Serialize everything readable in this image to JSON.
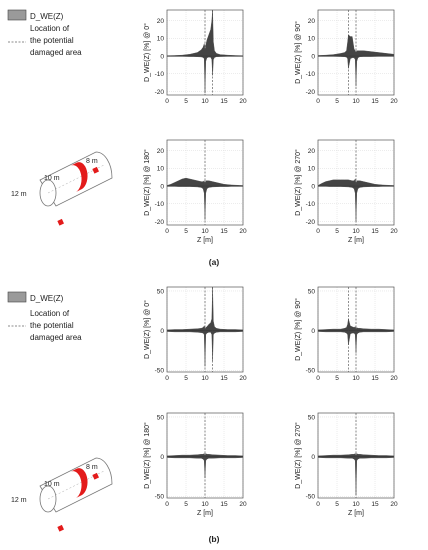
{
  "figure": {
    "caption_a": "(a)",
    "caption_b": "(b)"
  },
  "legend": {
    "series_label": "D_WE(Z)",
    "dashed_label_lines": [
      "Location of",
      "the potential",
      "damaged area"
    ]
  },
  "structure_labels": {
    "dim1": "8 m",
    "dim2": "10 m",
    "dim3": "12 m"
  },
  "colors": {
    "bar_fill": "#444444",
    "damage_marker": "#e31b1b",
    "grid": "#d8d8d8",
    "dashed": "#444444"
  },
  "chart_data": [
    {
      "id": "a-0",
      "type": "area",
      "panel": "a",
      "ylabel": "D_WE(Z) [%] @ 0°",
      "xlabel": "",
      "xlim": [
        0,
        20
      ],
      "ylim": [
        -22,
        26
      ],
      "xticks": [
        0,
        5,
        10,
        15,
        20
      ],
      "yticks": [
        -20,
        -10,
        0,
        10,
        20
      ],
      "damage_lines": [
        10,
        12
      ],
      "x": [
        0,
        2,
        4,
        6,
        7,
        8,
        9,
        9.5,
        9.8,
        10,
        10.2,
        10.5,
        11,
        11.5,
        11.8,
        12,
        12.2,
        12.5,
        13,
        14,
        16,
        18,
        20
      ],
      "upper": [
        0.2,
        0.3,
        0.5,
        1.0,
        1.5,
        2.0,
        3.5,
        5,
        7,
        3,
        6,
        9,
        12,
        15,
        20,
        26,
        8,
        3,
        1.5,
        0.8,
        0.5,
        0.3,
        0.2
      ],
      "lower": [
        -0.2,
        -0.2,
        -0.2,
        -0.3,
        -0.3,
        -0.4,
        -0.5,
        -0.8,
        -1.5,
        -21,
        -3,
        -1,
        -0.6,
        -0.7,
        -2,
        -11,
        -2,
        -0.8,
        -0.4,
        -0.3,
        -0.2,
        -0.2,
        -0.2
      ]
    },
    {
      "id": "a-90",
      "type": "area",
      "panel": "a",
      "ylabel": "D_WE(Z) [%] @ 90°",
      "xlabel": "",
      "xlim": [
        0,
        20
      ],
      "ylim": [
        -22,
        26
      ],
      "xticks": [
        0,
        5,
        10,
        15,
        20
      ],
      "yticks": [
        -20,
        -10,
        0,
        10,
        20
      ],
      "damage_lines": [
        8,
        10
      ],
      "x": [
        0,
        2,
        4,
        6,
        7,
        7.5,
        7.8,
        8,
        8.5,
        9,
        9.5,
        9.8,
        10,
        10.2,
        10.5,
        11,
        12,
        14,
        16,
        18,
        20
      ],
      "upper": [
        0.3,
        0.5,
        0.8,
        1.5,
        2.0,
        3,
        8,
        12,
        11,
        11,
        4,
        3,
        2,
        3,
        3,
        3,
        3,
        2.5,
        2,
        1.5,
        1
      ],
      "lower": [
        -0.2,
        -0.2,
        -0.2,
        -0.3,
        -0.4,
        -0.6,
        -1.5,
        -7,
        -1.5,
        -1,
        -1,
        -2,
        -17,
        -3,
        -1,
        -0.4,
        -0.3,
        -0.3,
        -0.2,
        -0.2,
        -0.2
      ]
    },
    {
      "id": "a-180",
      "type": "area",
      "panel": "a",
      "ylabel": "D_WE(Z) [%] @ 180°",
      "xlabel": "Z [m]",
      "xlim": [
        0,
        20
      ],
      "ylim": [
        -22,
        26
      ],
      "xticks": [
        0,
        5,
        10,
        15,
        20
      ],
      "yticks": [
        -20,
        -10,
        0,
        10,
        20
      ],
      "damage_lines": [
        10
      ],
      "x": [
        0,
        1,
        2,
        3,
        4,
        5,
        6,
        7,
        8,
        9,
        9.5,
        9.8,
        10,
        10.2,
        10.5,
        11,
        12,
        13,
        14,
        15,
        16,
        17,
        18,
        19,
        20
      ],
      "upper": [
        0.3,
        1,
        2,
        3,
        4,
        4.5,
        4,
        3.5,
        3,
        2.5,
        2.5,
        3,
        1,
        3,
        3,
        3,
        2.5,
        2,
        1.5,
        1,
        0.8,
        0.6,
        0.5,
        0.4,
        0.3
      ],
      "lower": [
        -0.2,
        -0.2,
        -0.2,
        -0.3,
        -0.3,
        -0.3,
        -0.3,
        -0.4,
        -0.5,
        -0.8,
        -1.5,
        -4,
        -19,
        -4,
        -1.5,
        -0.8,
        -0.5,
        -0.4,
        -0.3,
        -0.3,
        -0.3,
        -0.2,
        -0.2,
        -0.2,
        -0.2
      ]
    },
    {
      "id": "a-270",
      "type": "area",
      "panel": "a",
      "ylabel": "D_WE(Z) [%] @ 270°",
      "xlabel": "Z [m]",
      "xlim": [
        0,
        20
      ],
      "ylim": [
        -22,
        26
      ],
      "xticks": [
        0,
        5,
        10,
        15,
        20
      ],
      "yticks": [
        -20,
        -10,
        0,
        10,
        20
      ],
      "damage_lines": [
        10
      ],
      "x": [
        0,
        1,
        2,
        3,
        4,
        5,
        6,
        7,
        8,
        9,
        9.5,
        9.8,
        10,
        10.2,
        10.5,
        11,
        12,
        13,
        14,
        15,
        16,
        17,
        18,
        19,
        20
      ],
      "upper": [
        0.3,
        1.5,
        2.5,
        3,
        3.5,
        3.5,
        3.5,
        3.5,
        3.5,
        3,
        3,
        4,
        1,
        3,
        3,
        3,
        2.5,
        2,
        1.5,
        1,
        0.8,
        0.6,
        0.5,
        0.4,
        0.3
      ],
      "lower": [
        -0.2,
        -0.2,
        -0.2,
        -0.3,
        -0.3,
        -0.3,
        -0.3,
        -0.4,
        -0.5,
        -0.8,
        -1.5,
        -4,
        -20,
        -4,
        -1.5,
        -0.8,
        -0.5,
        -0.4,
        -0.3,
        -0.3,
        -0.3,
        -0.2,
        -0.2,
        -0.2,
        -0.2
      ]
    },
    {
      "id": "b-0",
      "type": "area",
      "panel": "b",
      "ylabel": "D_WE(Z) [%] @ 0°",
      "xlabel": "",
      "xlim": [
        0,
        20
      ],
      "ylim": [
        -52,
        55
      ],
      "xticks": [
        0,
        5,
        10,
        15,
        20
      ],
      "yticks": [
        -50,
        0,
        50
      ],
      "damage_lines": [
        10,
        12
      ],
      "x": [
        0,
        2,
        4,
        6,
        8,
        9,
        9.5,
        9.8,
        10,
        10.2,
        10.5,
        11,
        11.5,
        11.8,
        12,
        12.2,
        12.5,
        13,
        14,
        16,
        18,
        20
      ],
      "upper": [
        1,
        1.5,
        1.5,
        2,
        2.5,
        3,
        4,
        6,
        2,
        4,
        5,
        8,
        10,
        15,
        55,
        12,
        5,
        3,
        2,
        1.5,
        1.5,
        1
      ],
      "lower": [
        -1,
        -1.5,
        -1.5,
        -1.5,
        -2,
        -2.5,
        -3,
        -5,
        -45,
        -5,
        -3,
        -2,
        -2,
        -5,
        -38,
        -5,
        -3,
        -2,
        -1.5,
        -1.5,
        -1.5,
        -1
      ]
    },
    {
      "id": "b-90",
      "type": "area",
      "panel": "b",
      "ylabel": "D_WE(Z) [%] @ 90°",
      "xlabel": "",
      "xlim": [
        0,
        20
      ],
      "ylim": [
        -52,
        55
      ],
      "xticks": [
        0,
        5,
        10,
        15,
        20
      ],
      "yticks": [
        -50,
        0,
        50
      ],
      "damage_lines": [
        8,
        10
      ],
      "x": [
        0,
        2,
        4,
        6,
        7,
        7.5,
        7.8,
        8,
        8.5,
        9,
        9.5,
        9.8,
        10,
        10.2,
        10.5,
        11,
        12,
        14,
        16,
        18,
        20
      ],
      "upper": [
        1,
        1.5,
        2,
        2,
        3,
        4,
        8,
        15,
        6,
        5,
        4,
        5,
        2,
        4,
        3,
        3,
        2.5,
        2,
        2,
        1.5,
        1
      ],
      "lower": [
        -1,
        -1.5,
        -1.5,
        -1.5,
        -2,
        -3,
        -5,
        -18,
        -4,
        -3,
        -3,
        -5,
        -28,
        -5,
        -3,
        -2,
        -1.5,
        -1.5,
        -1.5,
        -1.5,
        -1
      ]
    },
    {
      "id": "b-180",
      "type": "area",
      "panel": "b",
      "ylabel": "D_WE(Z) [%] @ 180°",
      "xlabel": "Z [m]",
      "xlim": [
        0,
        20
      ],
      "ylim": [
        -52,
        55
      ],
      "xticks": [
        0,
        5,
        10,
        15,
        20
      ],
      "yticks": [
        -50,
        0,
        50
      ],
      "damage_lines": [
        10
      ],
      "x": [
        0,
        2,
        4,
        6,
        8,
        9,
        9.5,
        9.8,
        10,
        10.2,
        10.5,
        11,
        12,
        14,
        16,
        18,
        20
      ],
      "upper": [
        1,
        1.5,
        2,
        2,
        2.5,
        3,
        3,
        4,
        1,
        4,
        3,
        3,
        2.5,
        2,
        1.5,
        1.5,
        1
      ],
      "lower": [
        -1,
        -1.5,
        -1.5,
        -1.5,
        -2,
        -2,
        -3,
        -5,
        -27,
        -5,
        -3,
        -2,
        -2,
        -1.5,
        -1.5,
        -1.5,
        -1
      ]
    },
    {
      "id": "b-270",
      "type": "area",
      "panel": "b",
      "ylabel": "D_WE(Z) [%] @ 270°",
      "xlabel": "Z [m]",
      "xlim": [
        0,
        20
      ],
      "ylim": [
        -52,
        55
      ],
      "xticks": [
        0,
        5,
        10,
        15,
        20
      ],
      "yticks": [
        -50,
        0,
        50
      ],
      "damage_lines": [
        10
      ],
      "x": [
        0,
        2,
        4,
        6,
        8,
        9,
        9.5,
        9.8,
        10,
        10.2,
        10.5,
        11,
        12,
        14,
        16,
        18,
        20
      ],
      "upper": [
        1,
        1.5,
        2,
        2,
        2.5,
        3,
        3,
        4,
        1,
        4,
        3,
        3,
        2.5,
        2,
        1.5,
        1.5,
        1
      ],
      "lower": [
        -1,
        -1.5,
        -1.5,
        -1.5,
        -2,
        -2,
        -3,
        -5,
        -48,
        -5,
        -3,
        -2,
        -2,
        -1.5,
        -1.5,
        -1.5,
        -1
      ]
    }
  ]
}
